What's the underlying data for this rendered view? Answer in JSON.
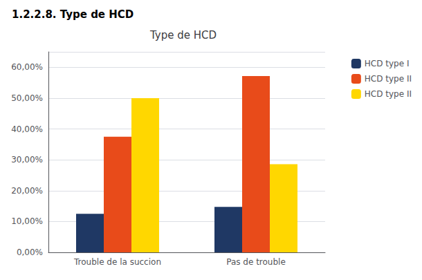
{
  "chart_data": {
    "type": "bar",
    "title": "Type de HCD",
    "subtitle": "1.2.2.8. Type de HCD",
    "categories": [
      "Trouble de la succion",
      "Pas de trouble"
    ],
    "series": [
      {
        "name": "HCD type I",
        "color": "#1F3864",
        "values": [
          0.125,
          0.1471
        ]
      },
      {
        "name": "HCD type II",
        "color": "#E84B1A",
        "values": [
          0.375,
          0.5714
        ]
      },
      {
        "name": "HCD type II",
        "color": "#FFD700",
        "values": [
          0.5,
          0.2857
        ]
      }
    ],
    "ylim": [
      0,
      0.65
    ],
    "yticks": [
      {
        "value": 0.0,
        "label": "0,00%"
      },
      {
        "value": 0.1,
        "label": "10,00%"
      },
      {
        "value": 0.2,
        "label": "20,00%"
      },
      {
        "value": 0.3,
        "label": "30,00%"
      },
      {
        "value": 0.4,
        "label": "40,00%"
      },
      {
        "value": 0.5,
        "label": "50,00%"
      },
      {
        "value": 0.6,
        "label": "60,00%"
      }
    ],
    "grid": true,
    "legend": "right"
  }
}
